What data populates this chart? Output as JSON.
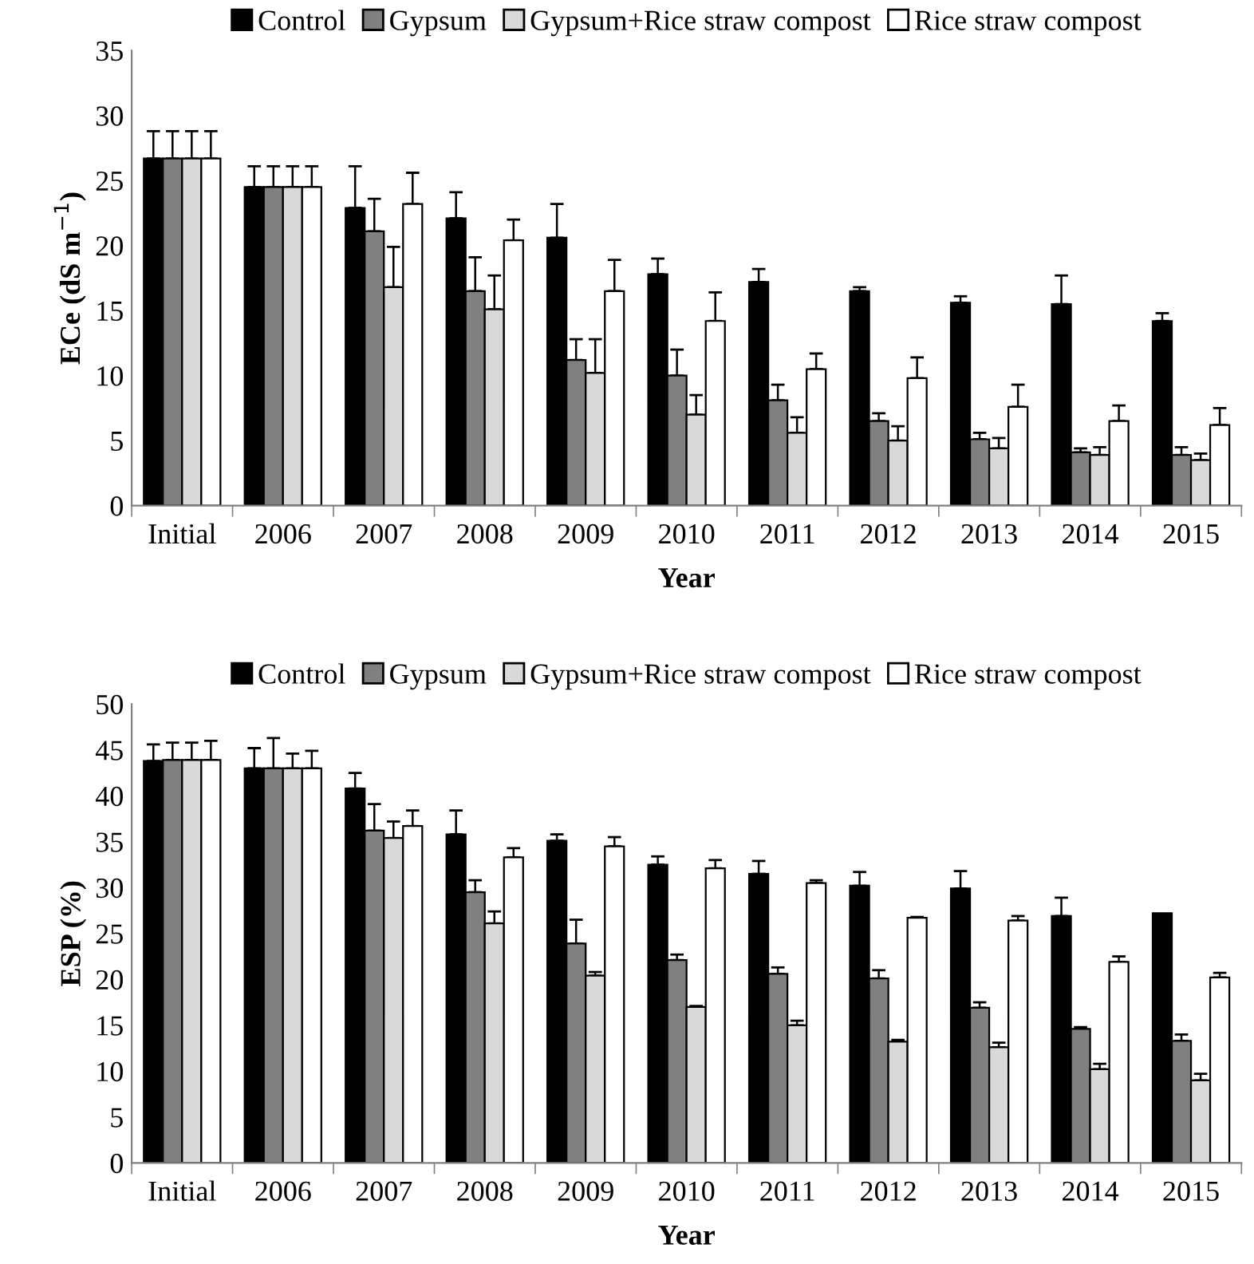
{
  "chart_data": [
    {
      "type": "bar",
      "xlabel": "Year",
      "ylabel": "ECe (dS m$^{−1}$)",
      "categories": [
        "Initial",
        "2006",
        "2007",
        "2008",
        "2009",
        "2010",
        "2011",
        "2012",
        "2013",
        "2014",
        "2015"
      ],
      "ylim": [
        0,
        35
      ],
      "yticks": [
        0,
        5,
        10,
        15,
        20,
        25,
        30,
        35
      ],
      "grid": false,
      "legend": "top",
      "series": [
        {
          "name": "Control",
          "color": "#000000",
          "values": [
            26.7,
            24.5,
            22.9,
            22.1,
            20.6,
            17.8,
            17.2,
            16.5,
            15.6,
            15.5,
            14.2
          ],
          "errors": [
            [
              26.7,
              28.8
            ],
            [
              24.5,
              26.1
            ],
            [
              22.9,
              26.1
            ],
            [
              22.1,
              24.1
            ],
            [
              20.6,
              23.2
            ],
            [
              17.8,
              19.0
            ],
            [
              17.2,
              18.2
            ],
            [
              16.5,
              16.8
            ],
            [
              15.6,
              16.1
            ],
            [
              15.5,
              17.7
            ],
            [
              14.2,
              14.8
            ]
          ]
        },
        {
          "name": "Gypsum",
          "color": "#808080",
          "values": [
            26.7,
            24.5,
            21.1,
            16.5,
            11.2,
            10.0,
            8.1,
            6.5,
            5.1,
            4.1,
            3.9
          ],
          "errors": [
            [
              26.7,
              28.8
            ],
            [
              24.5,
              26.1
            ],
            [
              21.1,
              23.6
            ],
            [
              16.5,
              19.1
            ],
            [
              11.2,
              12.8
            ],
            [
              10.0,
              12.0
            ],
            [
              8.1,
              9.3
            ],
            [
              6.5,
              7.1
            ],
            [
              5.1,
              5.6
            ],
            [
              4.1,
              4.4
            ],
            [
              3.9,
              4.5
            ]
          ]
        },
        {
          "name": "Gypsum+Rice straw compost",
          "color": "#d9d9d9",
          "values": [
            26.7,
            24.5,
            16.8,
            15.1,
            10.2,
            7.0,
            5.6,
            5.0,
            4.4,
            3.9,
            3.5
          ],
          "errors": [
            [
              26.7,
              28.8
            ],
            [
              24.5,
              26.1
            ],
            [
              16.8,
              19.9
            ],
            [
              15.1,
              17.7
            ],
            [
              10.2,
              12.8
            ],
            [
              7.0,
              8.5
            ],
            [
              5.6,
              6.8
            ],
            [
              5.0,
              6.1
            ],
            [
              4.4,
              5.2
            ],
            [
              3.9,
              4.5
            ],
            [
              3.5,
              4.0
            ]
          ]
        },
        {
          "name": "Rice straw compost",
          "color": "#ffffff",
          "values": [
            26.7,
            24.5,
            23.2,
            20.4,
            16.5,
            14.2,
            10.5,
            9.8,
            7.6,
            6.5,
            6.2
          ],
          "errors": [
            [
              26.7,
              28.8
            ],
            [
              24.5,
              26.1
            ],
            [
              23.2,
              25.6
            ],
            [
              20.4,
              22.0
            ],
            [
              16.5,
              18.9
            ],
            [
              14.2,
              16.4
            ],
            [
              10.5,
              11.7
            ],
            [
              9.8,
              11.4
            ],
            [
              7.6,
              9.3
            ],
            [
              6.5,
              7.7
            ],
            [
              6.2,
              7.5
            ]
          ]
        }
      ]
    },
    {
      "type": "bar",
      "xlabel": "Year",
      "ylabel": "ESP (%)",
      "categories": [
        "Initial",
        "2006",
        "2007",
        "2008",
        "2009",
        "2010",
        "2011",
        "2012",
        "2013",
        "2014",
        "2015"
      ],
      "ylim": [
        0,
        50
      ],
      "yticks": [
        0,
        5,
        10,
        15,
        20,
        25,
        30,
        35,
        40,
        45,
        50
      ],
      "grid": false,
      "legend": "top",
      "series": [
        {
          "name": "Control",
          "color": "#000000",
          "values": [
            43.8,
            43.0,
            40.8,
            35.8,
            35.1,
            32.5,
            31.5,
            30.2,
            29.9,
            26.9,
            27.2
          ],
          "errors": [
            [
              43.8,
              45.6
            ],
            [
              43.0,
              45.2
            ],
            [
              40.8,
              42.5
            ],
            [
              35.8,
              38.4
            ],
            [
              35.1,
              35.8
            ],
            [
              32.5,
              33.4
            ],
            [
              31.5,
              32.9
            ],
            [
              30.2,
              31.7
            ],
            [
              29.9,
              31.8
            ],
            [
              26.9,
              28.9
            ],
            null
          ]
        },
        {
          "name": "Gypsum",
          "color": "#808080",
          "values": [
            43.9,
            43.0,
            36.2,
            29.5,
            23.9,
            22.1,
            20.6,
            20.1,
            16.9,
            14.6,
            13.3
          ],
          "errors": [
            [
              43.9,
              45.8
            ],
            [
              43.0,
              46.3
            ],
            [
              36.2,
              39.1
            ],
            [
              29.5,
              30.8
            ],
            [
              23.9,
              26.5
            ],
            [
              22.1,
              22.7
            ],
            [
              20.6,
              21.3
            ],
            [
              20.1,
              21.0
            ],
            [
              16.9,
              17.5
            ],
            [
              14.6,
              14.8
            ],
            [
              13.3,
              14.0
            ]
          ]
        },
        {
          "name": "Gypsum+Rice straw compost",
          "color": "#d9d9d9",
          "values": [
            43.9,
            43.0,
            35.4,
            26.1,
            20.4,
            17.0,
            15.0,
            13.2,
            12.6,
            10.2,
            9.0
          ],
          "errors": [
            [
              43.9,
              45.8
            ],
            [
              43.0,
              44.6
            ],
            [
              35.4,
              37.2
            ],
            [
              26.1,
              27.4
            ],
            [
              20.4,
              20.8
            ],
            [
              17.0,
              17.1
            ],
            [
              15.0,
              15.5
            ],
            [
              13.2,
              13.4
            ],
            [
              12.6,
              13.1
            ],
            [
              10.2,
              10.8
            ],
            [
              9.0,
              9.7
            ]
          ]
        },
        {
          "name": "Rice straw compost",
          "color": "#ffffff",
          "values": [
            43.9,
            43.0,
            36.7,
            33.3,
            34.5,
            32.1,
            30.5,
            26.7,
            26.4,
            21.9,
            20.2
          ],
          "errors": [
            [
              43.9,
              46.0
            ],
            [
              43.0,
              44.9
            ],
            [
              36.7,
              38.4
            ],
            [
              33.3,
              34.3
            ],
            [
              34.5,
              35.5
            ],
            [
              32.1,
              33.0
            ],
            [
              30.5,
              30.8
            ],
            [
              26.7,
              26.8
            ],
            [
              26.4,
              26.9
            ],
            [
              21.9,
              22.5
            ],
            [
              20.2,
              20.7
            ]
          ]
        }
      ]
    }
  ]
}
